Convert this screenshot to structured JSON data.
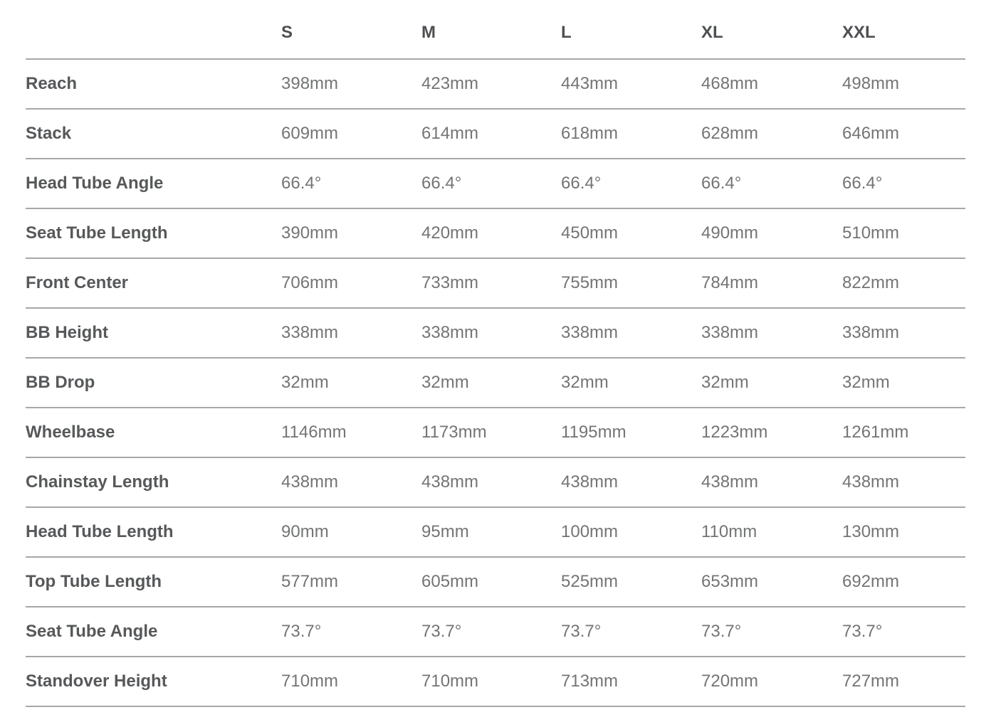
{
  "table": {
    "title": "frame-geometry",
    "columns": [
      "",
      "S",
      "M",
      "L",
      "XL",
      "XXL"
    ],
    "rows": [
      {
        "label": "Reach",
        "values": [
          "398mm",
          "423mm",
          "443mm",
          "468mm",
          "498mm"
        ]
      },
      {
        "label": "Stack",
        "values": [
          "609mm",
          "614mm",
          "618mm",
          "628mm",
          "646mm"
        ]
      },
      {
        "label": "Head Tube Angle",
        "values": [
          "66.4°",
          "66.4°",
          "66.4°",
          "66.4°",
          "66.4°"
        ]
      },
      {
        "label": "Seat Tube Length",
        "values": [
          "390mm",
          "420mm",
          "450mm",
          "490mm",
          "510mm"
        ]
      },
      {
        "label": "Front Center",
        "values": [
          "706mm",
          "733mm",
          "755mm",
          "784mm",
          "822mm"
        ]
      },
      {
        "label": "BB Height",
        "values": [
          "338mm",
          "338mm",
          "338mm",
          "338mm",
          "338mm"
        ]
      },
      {
        "label": "BB Drop",
        "values": [
          "32mm",
          "32mm",
          "32mm",
          "32mm",
          "32mm"
        ]
      },
      {
        "label": "Wheelbase",
        "values": [
          "1146mm",
          "1173mm",
          "1195mm",
          "1223mm",
          "1261mm"
        ]
      },
      {
        "label": "Chainstay Length",
        "values": [
          "438mm",
          "438mm",
          "438mm",
          "438mm",
          "438mm"
        ]
      },
      {
        "label": "Head Tube Length",
        "values": [
          "90mm",
          "95mm",
          "100mm",
          "110mm",
          "130mm"
        ]
      },
      {
        "label": "Top Tube Length",
        "values": [
          "577mm",
          "605mm",
          "525mm",
          "653mm",
          "692mm"
        ]
      },
      {
        "label": "Seat Tube Angle",
        "values": [
          "73.7°",
          "73.7°",
          "73.7°",
          "73.7°",
          "73.7°"
        ]
      },
      {
        "label": "Standover Height",
        "values": [
          "710mm",
          "710mm",
          "713mm",
          "720mm",
          "727mm"
        ]
      }
    ]
  },
  "colors": {
    "header_text": "#4d4f52",
    "label_text": "#56585a",
    "value_text": "#737476",
    "divider": "#a7a7a7",
    "background": "#ffffff"
  }
}
